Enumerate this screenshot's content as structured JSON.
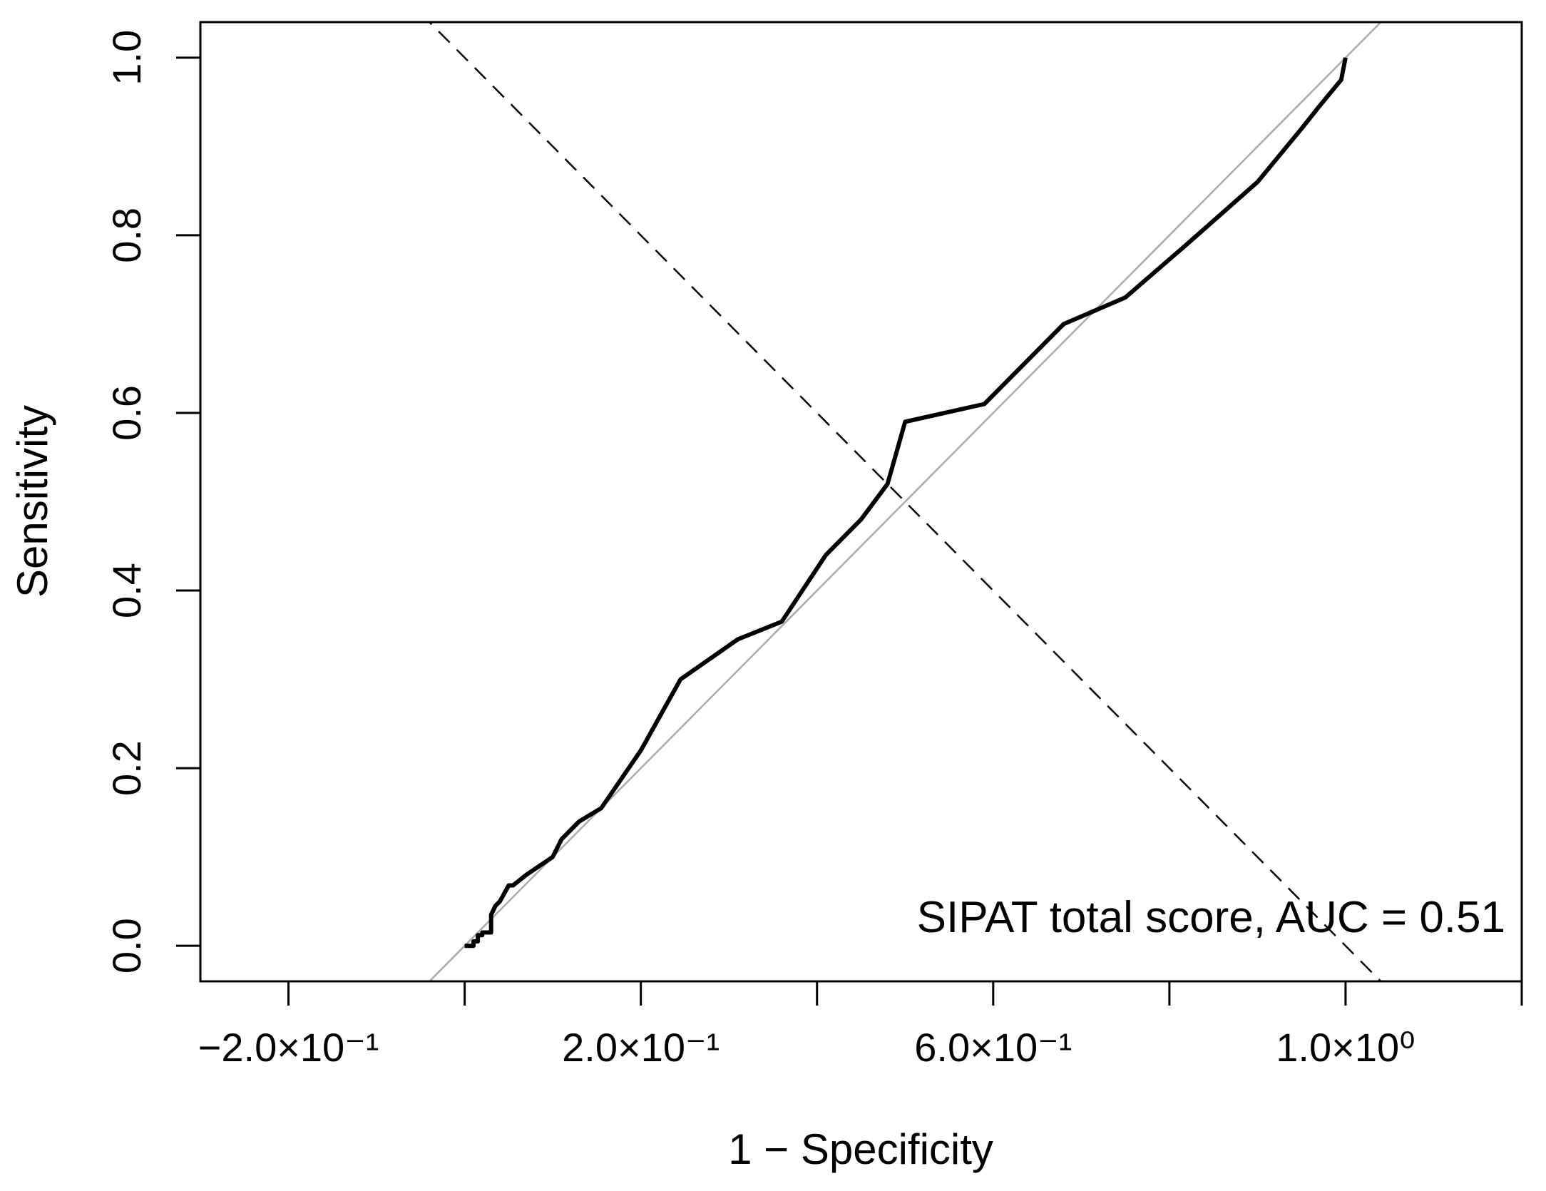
{
  "chart_data": {
    "type": "line",
    "title": "",
    "xlabel": "1 − Specificity",
    "ylabel": "Sensitivity",
    "xlim": [
      -0.3,
      1.2
    ],
    "ylim": [
      -0.04,
      1.04
    ],
    "x_ticks": [
      {
        "value": -0.2,
        "label": "−2.0×10⁻¹"
      },
      {
        "value": 0.0,
        "label": ""
      },
      {
        "value": 0.2,
        "label": "2.0×10⁻¹"
      },
      {
        "value": 0.4,
        "label": ""
      },
      {
        "value": 0.6,
        "label": "6.0×10⁻¹"
      },
      {
        "value": 0.8,
        "label": ""
      },
      {
        "value": 1.0,
        "label": "1.0×10⁰"
      },
      {
        "value": 1.2,
        "label": ""
      }
    ],
    "y_ticks": [
      {
        "value": 0.0,
        "label": "0.0"
      },
      {
        "value": 0.2,
        "label": "0.2"
      },
      {
        "value": 0.4,
        "label": "0.4"
      },
      {
        "value": 0.6,
        "label": "0.6"
      },
      {
        "value": 0.8,
        "label": "0.8"
      },
      {
        "value": 1.0,
        "label": "1.0"
      }
    ],
    "grid": false,
    "legend": "none",
    "series": [
      {
        "style": "solid-thick",
        "color": "#000000",
        "x": [
          0.0,
          0.01,
          0.01,
          0.015,
          0.015,
          0.02,
          0.02,
          0.03,
          0.03,
          0.035,
          0.04,
          0.05,
          0.055,
          0.07,
          0.1,
          0.11,
          0.13,
          0.155,
          0.2,
          0.245,
          0.31,
          0.36,
          0.41,
          0.45,
          0.48,
          0.5,
          0.59,
          0.68,
          0.75,
          0.82,
          0.9,
          0.95,
          0.97,
          0.995,
          1.0
        ],
        "y": [
          0.0,
          0.0,
          0.005,
          0.005,
          0.012,
          0.012,
          0.015,
          0.015,
          0.035,
          0.045,
          0.05,
          0.068,
          0.068,
          0.08,
          0.1,
          0.12,
          0.14,
          0.155,
          0.22,
          0.3,
          0.345,
          0.365,
          0.44,
          0.48,
          0.52,
          0.59,
          0.61,
          0.7,
          0.73,
          0.79,
          0.86,
          0.92,
          0.945,
          0.975,
          1.0
        ]
      },
      {
        "style": "reference-diagonal",
        "color": "#aaaaaa",
        "x": [
          -0.05,
          1.1
        ],
        "y": [
          -0.05,
          1.1
        ]
      },
      {
        "style": "dashed",
        "color": "#000000",
        "x": [
          -0.05,
          1.05
        ],
        "y": [
          1.05,
          -0.05
        ]
      }
    ],
    "annotation": "SIPAT total score, AUC = 0.51"
  }
}
